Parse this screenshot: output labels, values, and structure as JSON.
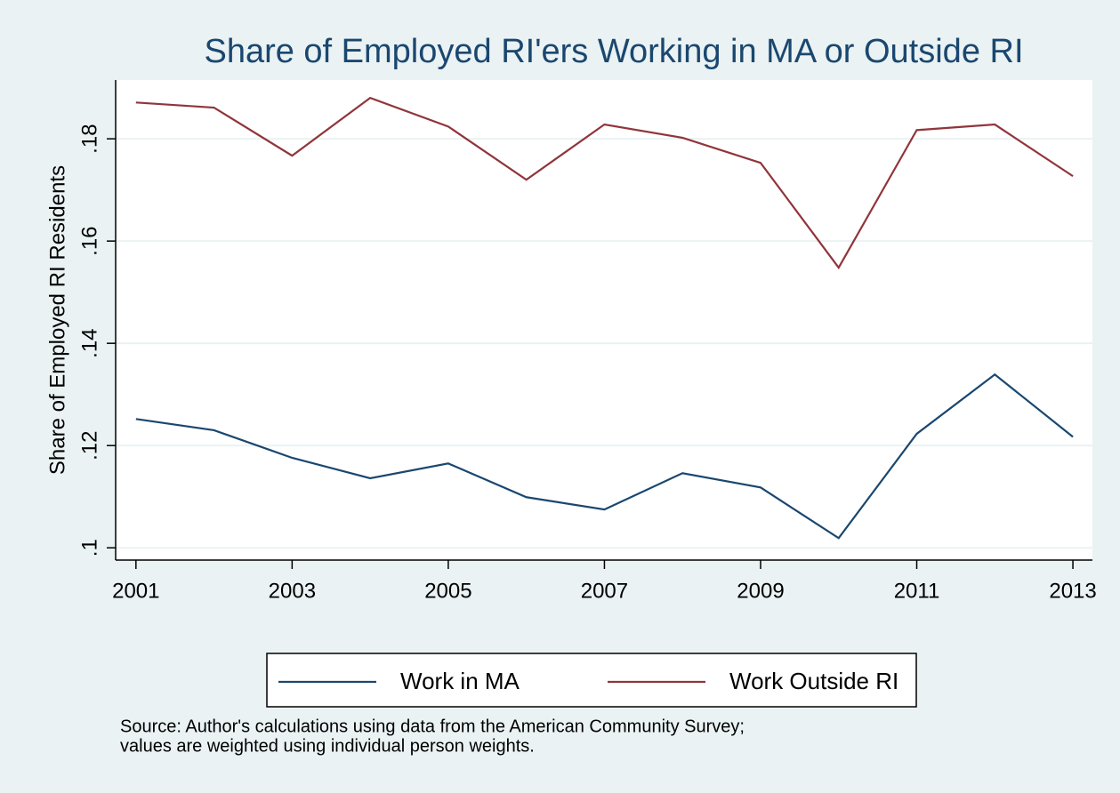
{
  "chart_data": {
    "type": "line",
    "title": "Share of Employed RI'ers Working in MA or Outside RI",
    "y_label": "Share of Employed RI Residents",
    "x": [
      2001,
      2002,
      2003,
      2004,
      2005,
      2006,
      2007,
      2008,
      2009,
      2010,
      2011,
      2012,
      2013
    ],
    "series": [
      {
        "name": "Work in MA",
        "color": "#1a476f",
        "values": [
          0.1252,
          0.123,
          0.1176,
          0.1136,
          0.1165,
          0.1099,
          0.1075,
          0.1146,
          0.1118,
          0.1019,
          0.1223,
          0.1339,
          0.1217
        ]
      },
      {
        "name": "Work Outside RI",
        "color": "#90353b",
        "values": [
          0.1871,
          0.1861,
          0.1767,
          0.188,
          0.1824,
          0.172,
          0.1828,
          0.1802,
          0.1753,
          0.1548,
          0.1817,
          0.1828,
          0.1727
        ]
      }
    ],
    "xlim": [
      2000.74,
      2013.25
    ],
    "xticks": [
      2001,
      2003,
      2005,
      2007,
      2009,
      2011,
      2013
    ],
    "ylim": [
      0.0976,
      0.1915
    ],
    "yticks": [
      {
        "value": 0.1,
        "label": ".1"
      },
      {
        "value": 0.12,
        "label": ".12"
      },
      {
        "value": 0.14,
        "label": ".14"
      },
      {
        "value": 0.16,
        "label": ".16"
      },
      {
        "value": 0.18,
        "label": ".18"
      }
    ],
    "grid": true,
    "legend": "bottom",
    "note": [
      "Source: Author's calculations using data from the American Community Survey;",
      "values are weighted using individual person weights."
    ]
  }
}
